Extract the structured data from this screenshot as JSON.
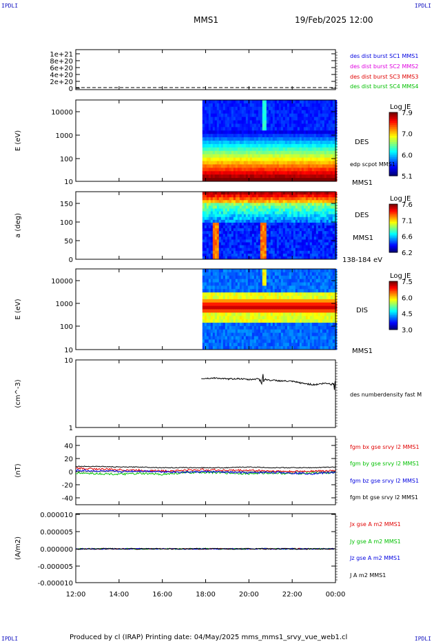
{
  "corner_label": "IPDLI",
  "header": {
    "spacecraft": "MMS1",
    "datetime": "19/Feb/2025 12:00"
  },
  "footer": {
    "text": "Produced by cl (IRAP)   Printing date: 04/May/2025   mms_mms1_srvy_vue_web1.cl"
  },
  "x_axis": {
    "ticks": [
      "12:00",
      "14:00",
      "16:00",
      "18:00",
      "20:00",
      "22:00",
      "00:00"
    ]
  },
  "colors": {
    "red": "#e00000",
    "green": "#00c000",
    "blue": "#0000e0",
    "magenta": "#e000e0",
    "black": "#000000"
  },
  "chart_data": [
    {
      "panel": "dist-burst",
      "type": "line",
      "yticks": [
        "1e+21",
        "8e+20",
        "6e+20",
        "4e+20",
        "2e+20",
        "0"
      ],
      "legend": [
        {
          "text": "des dist burst SC1 MMS1",
          "color": "#0000e0"
        },
        {
          "text": "des dist burst SC2 MMS2",
          "color": "#e000e0"
        },
        {
          "text": "des dist burst SC3 MMS3",
          "color": "#e00000"
        },
        {
          "text": "des dist burst SC4 MMS4",
          "color": "#00c000"
        }
      ]
    },
    {
      "panel": "des-energy",
      "type": "heatmap",
      "ylabel": "E (eV)",
      "yticks": [
        "10000",
        "1000",
        "100",
        "10"
      ],
      "data_start": "17:50",
      "colorbar": {
        "title": "Log JE",
        "ticks": [
          "7.9",
          "7.0",
          "6.0",
          "5.1"
        ]
      },
      "right_labels": [
        "DES",
        "edp scpot MMS1",
        "MMS1"
      ]
    },
    {
      "panel": "des-pitch",
      "type": "heatmap",
      "ylabel": "a (deg)",
      "yticks": [
        "150",
        "100",
        "50",
        "0"
      ],
      "colorbar": {
        "title": "Log JE",
        "ticks": [
          "7.6",
          "7.1",
          "6.6",
          "6.2"
        ]
      },
      "right_labels": [
        "DES",
        "MMS1",
        "138-184 eV"
      ]
    },
    {
      "panel": "dis-energy",
      "type": "heatmap",
      "ylabel": "E (eV)",
      "yticks": [
        "10000",
        "1000",
        "100",
        "10"
      ],
      "colorbar": {
        "title": "Log JE",
        "ticks": [
          "7.5",
          "6.0",
          "4.5",
          "3.0"
        ]
      },
      "right_labels": [
        "DIS",
        "MMS1"
      ]
    },
    {
      "panel": "density",
      "type": "line",
      "ylabel": "(cm^-3)",
      "yticks": [
        "10",
        "1"
      ],
      "legend": [
        {
          "text": "des numberdensity fast M",
          "color": "#000000"
        }
      ],
      "series": [
        {
          "x": [
            17.8,
            18.5,
            19.0,
            19.5,
            20.0,
            20.5,
            21.0,
            21.5,
            22.0,
            22.5,
            23.0,
            23.5,
            24.0
          ],
          "y": [
            5.3,
            5.4,
            5.2,
            5.3,
            5.1,
            5.3,
            5.0,
            4.9,
            4.8,
            4.5,
            4.3,
            4.5,
            4.4
          ]
        }
      ]
    },
    {
      "panel": "magnetic-field",
      "type": "line",
      "ylabel": "(nT)",
      "yticks": [
        "40",
        "20",
        "0",
        "-20",
        "-40"
      ],
      "legend": [
        {
          "text": "fgm bx gse srvy l2 MMS1",
          "color": "#e00000"
        },
        {
          "text": "fgm by gse srvy l2 MMS1",
          "color": "#00c000"
        },
        {
          "text": "fgm bz gse srvy l2 MMS1",
          "color": "#0000e0"
        },
        {
          "text": "fgm bt gse srvy l2 MMS1",
          "color": "#000000"
        }
      ],
      "series": [
        {
          "name": "fgm bt gse srvy l2 MMS1",
          "y": [
            8,
            8,
            7,
            7,
            6,
            6,
            6,
            6,
            7,
            6,
            6,
            6,
            7
          ]
        },
        {
          "name": "fgm bx gse srvy l2 MMS1",
          "y": [
            5,
            4,
            3,
            2,
            1,
            2,
            3,
            2,
            2,
            1,
            0,
            1,
            1
          ]
        },
        {
          "name": "fgm by gse srvy l2 MMS1",
          "y": [
            -2,
            -3,
            -4,
            -3,
            -4,
            -2,
            -1,
            -2,
            -3,
            -2,
            -3,
            -2,
            -2
          ]
        },
        {
          "name": "fgm bz gse srvy l2 MMS1",
          "y": [
            2,
            1,
            0,
            1,
            0,
            -1,
            0,
            -1,
            -2,
            -1,
            -2,
            -3,
            -1
          ]
        }
      ],
      "x": [
        12,
        13,
        14,
        15,
        16,
        17,
        18,
        19,
        20,
        21,
        22,
        23,
        24
      ]
    },
    {
      "panel": "current-density",
      "type": "line",
      "ylabel": "(A/m2)",
      "yticks": [
        "0.000010",
        "0.000005",
        "0.000000",
        "-0.000005",
        "-0.000010"
      ],
      "legend": [
        {
          "text": "Jx gse A m2 MMS1",
          "color": "#e00000"
        },
        {
          "text": "Jy gse A m2 MMS1",
          "color": "#00c000"
        },
        {
          "text": "Jz gse A m2 MMS1",
          "color": "#0000e0"
        },
        {
          "text": "J A m2 MMS1",
          "color": "#000000"
        }
      ]
    }
  ]
}
